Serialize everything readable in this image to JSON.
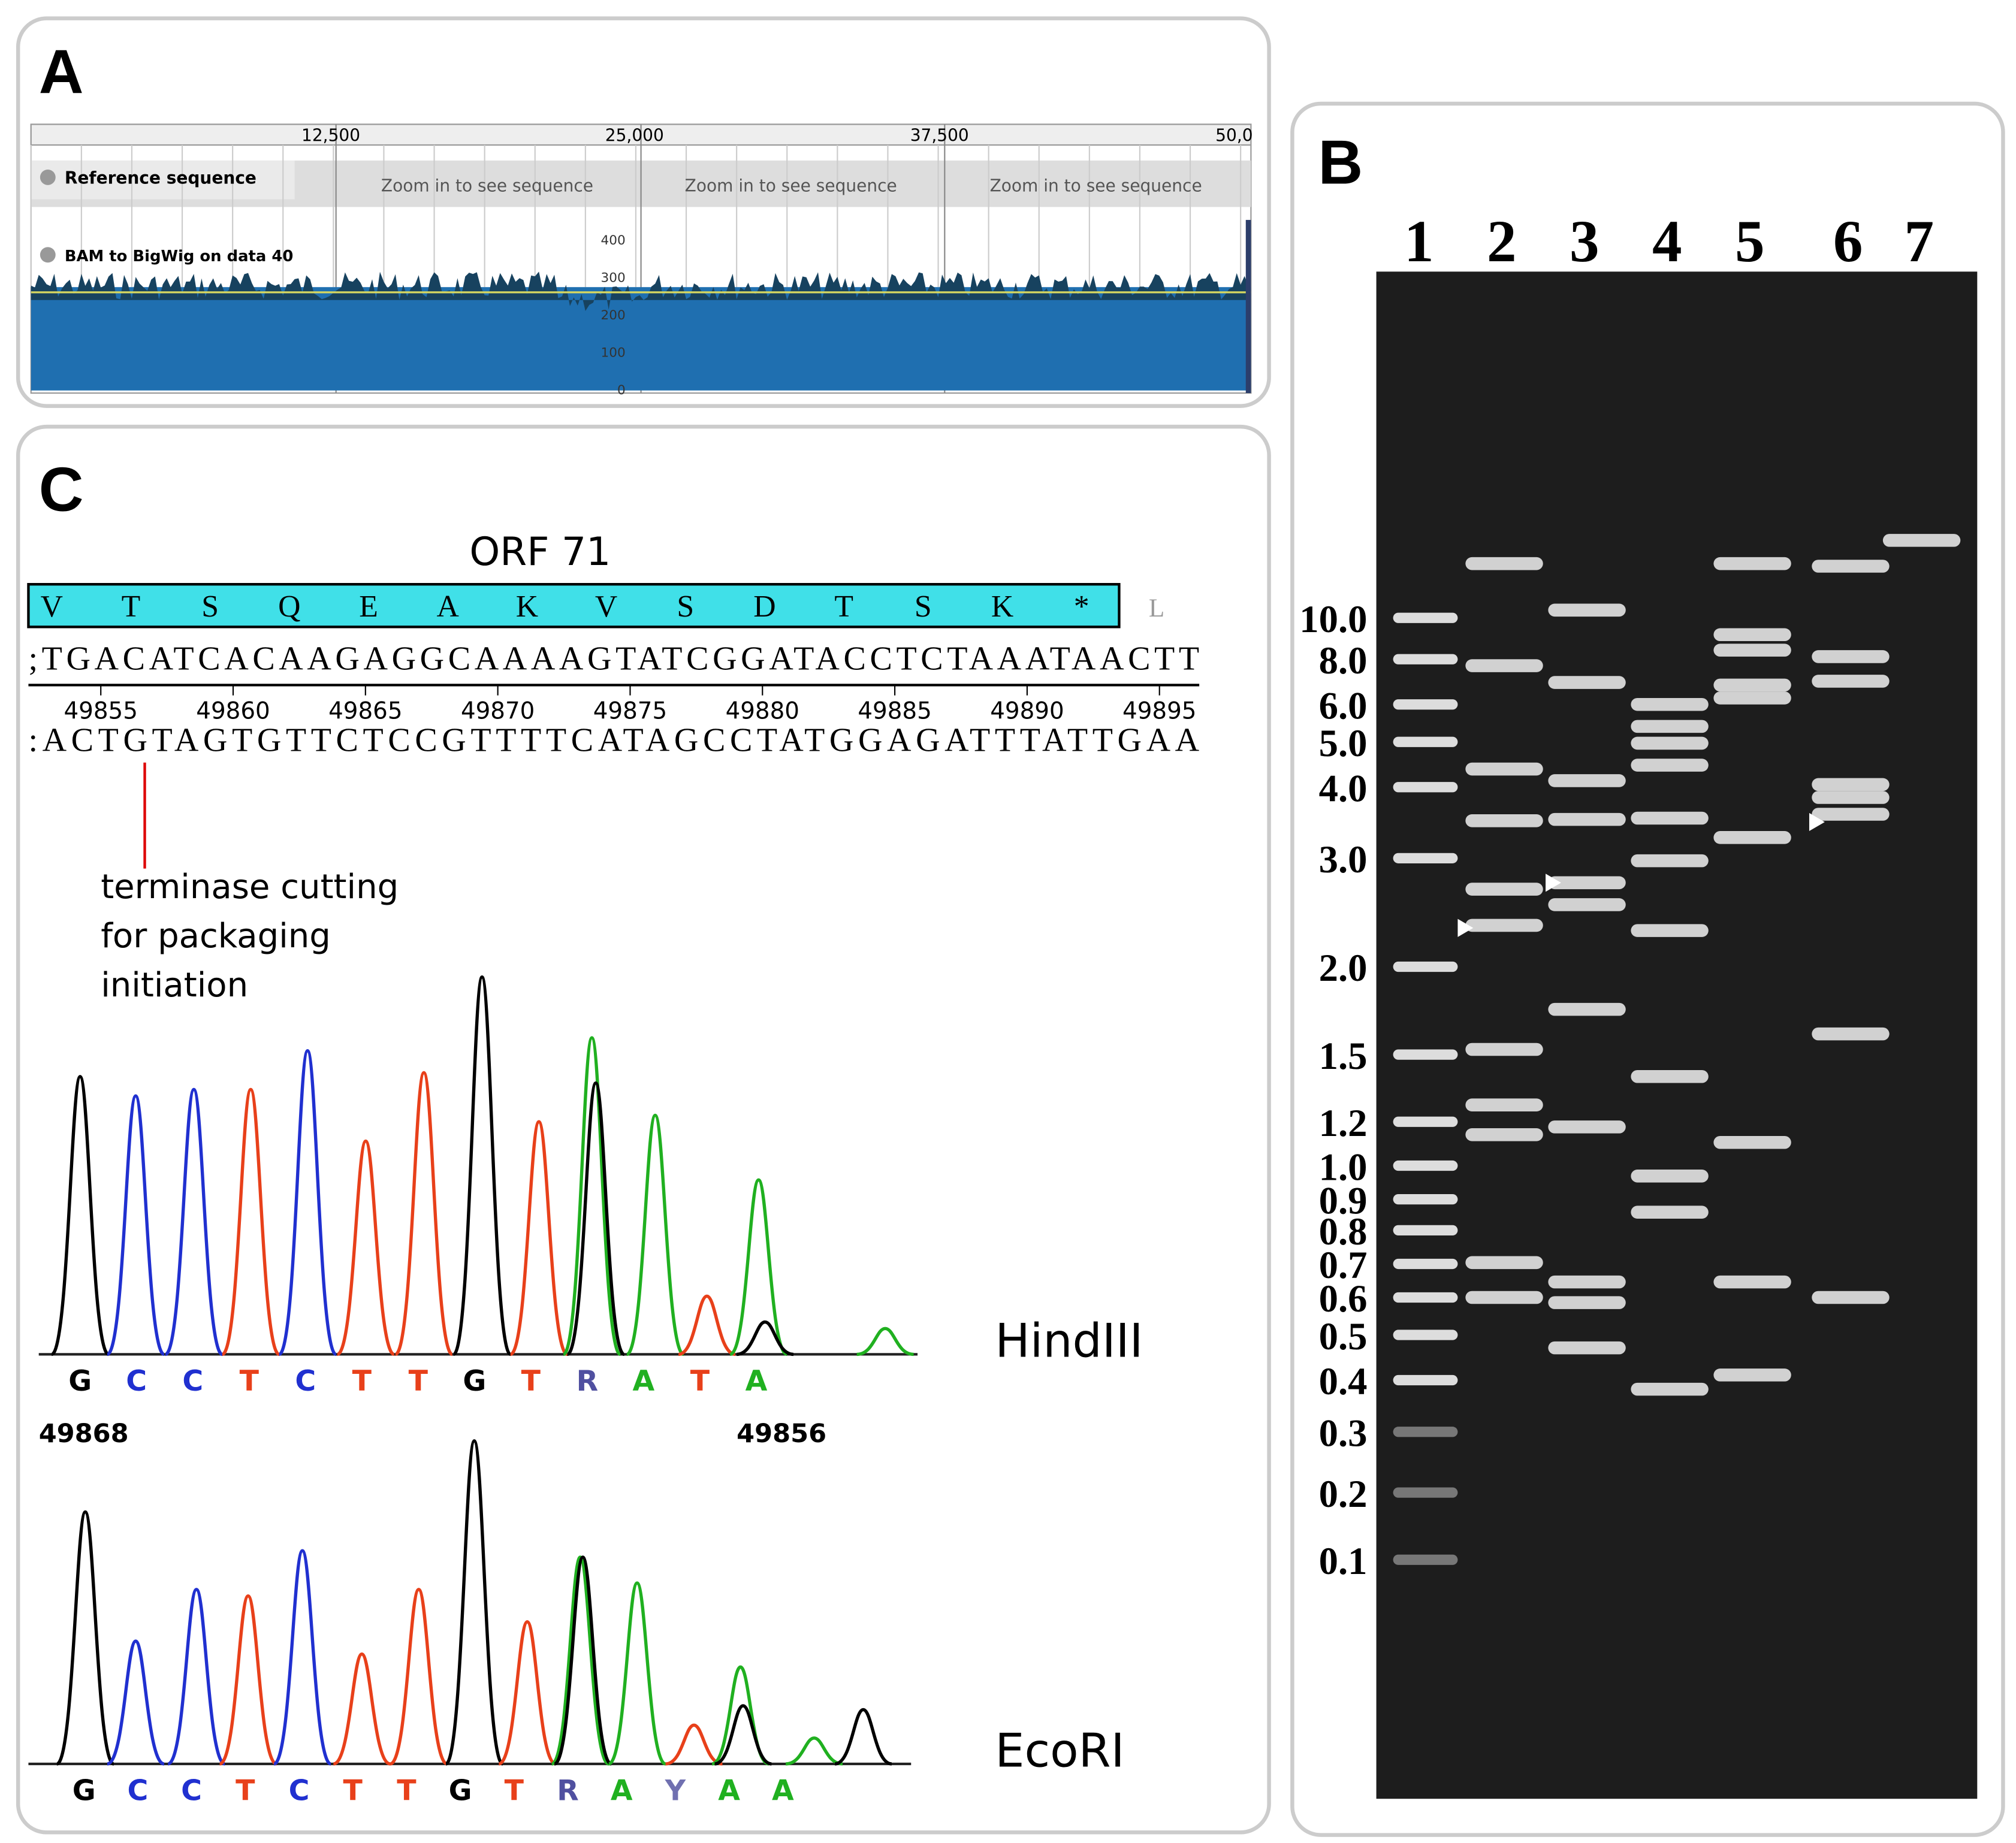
{
  "panel_a": {
    "label": "A",
    "ruler": [
      "12,500",
      "25,000",
      "37,500",
      "50,0"
    ],
    "reference_track": "Reference sequence",
    "zoom_notes": [
      "Zoom in to see sequence",
      "Zoom in to see sequence",
      "Zoom in to see sequence"
    ],
    "coverage_track": "BAM to BigWig on data 40",
    "coverage_ticks": [
      400,
      300,
      200,
      100,
      0
    ]
  },
  "panel_b": {
    "label": "B",
    "lanes": [
      1,
      2,
      3,
      4,
      5,
      6,
      7
    ],
    "markers": [
      "10.0",
      "8.0",
      "6.0",
      "5.0",
      "4.0",
      "3.0",
      "2.0",
      "1.5",
      "1.2",
      "1.0",
      "0.9",
      "0.8",
      "0.7",
      "0.6",
      "0.5",
      "0.4",
      "0.3",
      "0.2",
      "0.1"
    ]
  },
  "panel_c": {
    "label": "C",
    "orf": "ORF 71",
    "amino_acids": [
      "V",
      "T",
      "S",
      "Q",
      "E",
      "A",
      "K",
      "V",
      "S",
      "D",
      "T",
      "S",
      "K",
      "*"
    ],
    "next_amino_acid": "L",
    "top_strand": ";TGACATCACAAGAGGCAAAAGTATCGGATACCTCTAAATAACTT",
    "positions": [
      49855,
      49860,
      49865,
      49870,
      49875,
      49880,
      49885,
      49890,
      49895
    ],
    "bottom_strand": ":ACTGTAGTGTTCTCCGTTTTCATAGCCTATGGAGATTTATTGAA",
    "annotation": [
      "terminase cutting",
      "for packaging",
      "initiation"
    ],
    "traces": [
      {
        "enzyme": "HindIII",
        "bases": [
          "G",
          "C",
          "C",
          "T",
          "C",
          "T",
          "T",
          "G",
          "T",
          "R",
          "A",
          "T",
          "A"
        ],
        "start": 49868,
        "end": 49856
      },
      {
        "enzyme": "EcoRI",
        "bases": [
          "G",
          "C",
          "C",
          "T",
          "C",
          "T",
          "T",
          "G",
          "T",
          "R",
          "A",
          "Y",
          "A",
          "A"
        ]
      }
    ]
  }
}
